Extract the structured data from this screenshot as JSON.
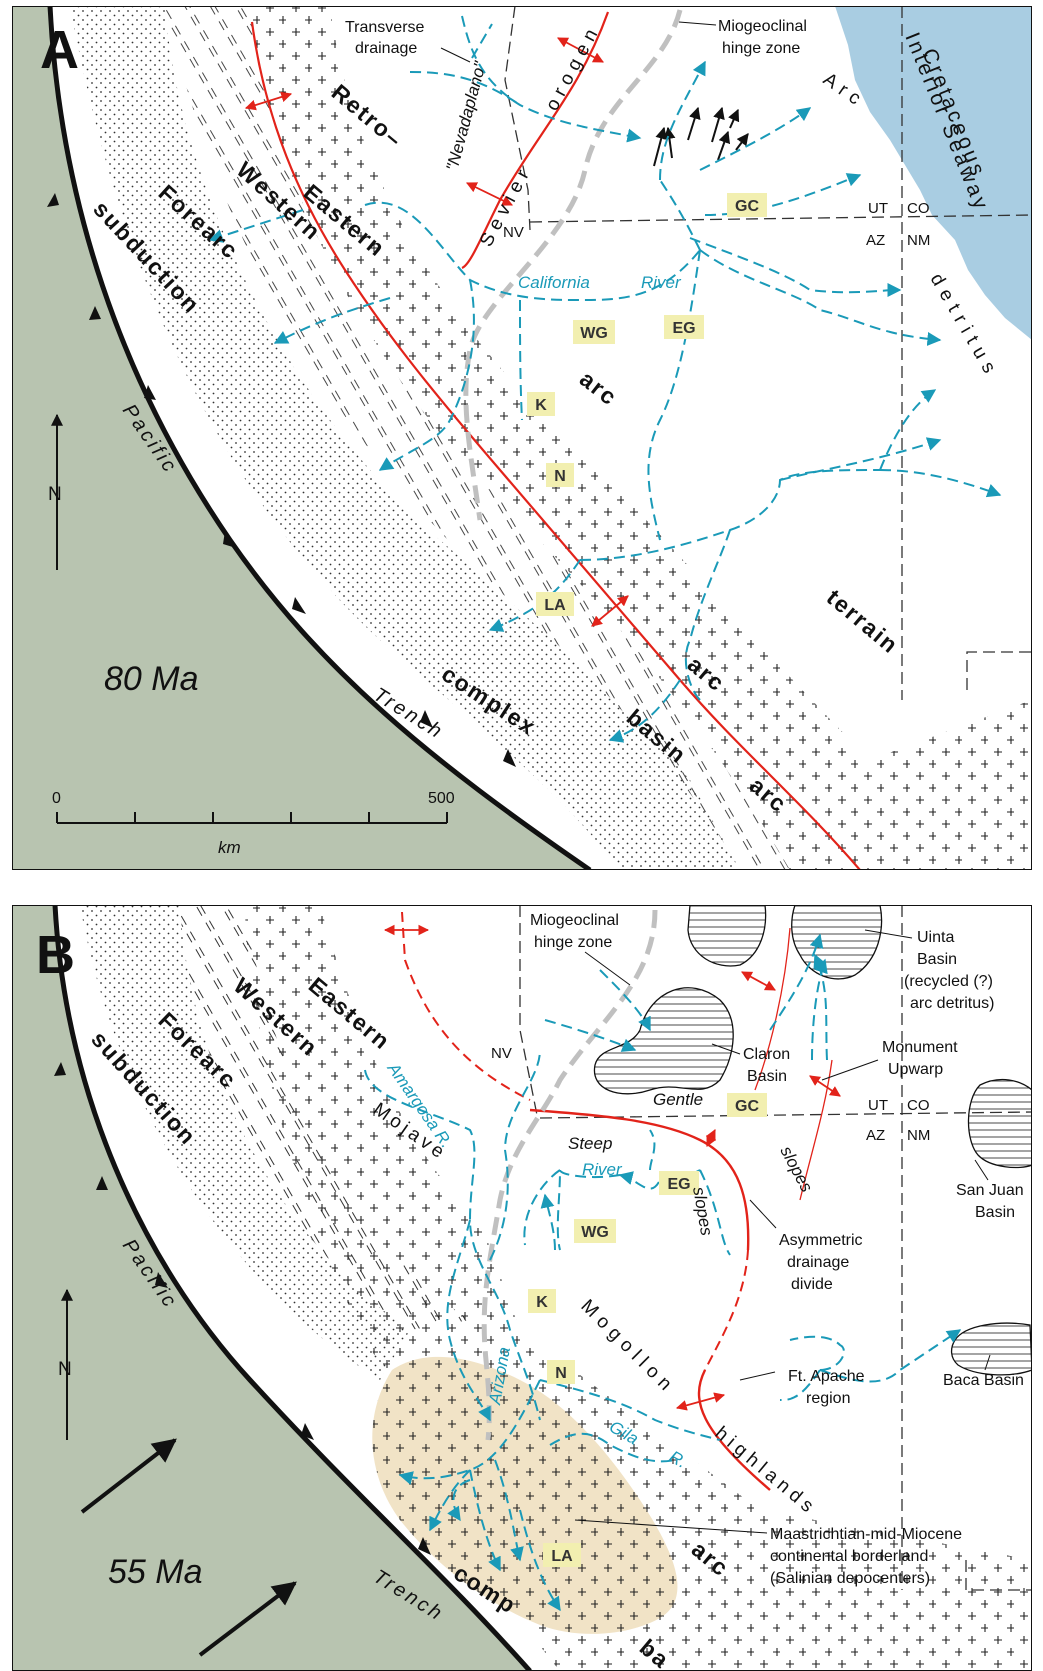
{
  "colors": {
    "ocean": "#b8c4b0",
    "seaway": "#a9cde2",
    "drainage": "#1a9ab8",
    "fault": "#e2231a",
    "hinge": "#c0c0c0",
    "locality_box": "#f2efb0",
    "borderland": "#f1e3c6"
  },
  "panel_a": {
    "letter": "A",
    "age": "80 Ma",
    "scale_min": "0",
    "scale_max": "500",
    "scale_unit": "km",
    "north": "N",
    "transverse_drainage": [
      "Transverse",
      "drainage"
    ],
    "hinge_zone": [
      "Miogeoclinal",
      "hinge zone"
    ],
    "seaway": [
      "Cretaceous",
      "Interior Seaway"
    ],
    "nevadaplano": "\"Nevadaplano\"",
    "sevier": "Sevier",
    "orogen": "orogen",
    "arc_word": "Arc",
    "detritus": "detritus",
    "retro": "Retro–",
    "eastern": "Eastern",
    "western": "Western",
    "forearc": "Forearc",
    "subduction": "subduction",
    "complex": "complex",
    "pacific": "Pacific",
    "trench": "Trench",
    "arc1": "arc",
    "arc2": "arc",
    "arc3": "arc",
    "basin": "basin",
    "terrain": "terrain",
    "california_river": [
      "California",
      "River"
    ],
    "states": [
      "NV",
      "UT",
      "CO",
      "AZ",
      "NM"
    ],
    "localities": [
      "GC",
      "WG",
      "EG",
      "K",
      "N",
      "LA"
    ]
  },
  "panel_b": {
    "letter": "B",
    "age": "55 Ma",
    "north": "N",
    "hinge_zone": [
      "Miogeoclinal",
      "hinge zone"
    ],
    "uinta": [
      "Uinta",
      "Basin",
      "(recycled (?)",
      "arc detritus)"
    ],
    "claron": [
      "Claron",
      "Basin"
    ],
    "monument": [
      "Monument",
      "Upwarp"
    ],
    "gentle": "Gentle",
    "steep": "Steep",
    "slopes1": "slopes",
    "slopes2": "slopes",
    "san_juan": [
      "San Juan",
      "Basin"
    ],
    "asymmetric": [
      "Asymmetric",
      "drainage",
      "divide"
    ],
    "amargosa": "Amargosa R.",
    "mojave": "Mojave",
    "river": "River",
    "arizona": "Arizona",
    "gila": "Gila",
    "gila_r": "R.",
    "mogollon": "Mogollon",
    "highlands": "highlands",
    "ft_apache": [
      "Ft. Apache",
      "region"
    ],
    "baca": "Baca Basin",
    "borderland": [
      "Maastrichtian-mid-Miocene",
      "continental borderland",
      "(Salinian depocenters)"
    ],
    "eastern": "Eastern",
    "western": "Western",
    "forearc": "Forearc",
    "subduction": "subduction",
    "pacific": "Pacific",
    "trench": "Trench",
    "comp": "comp",
    "arc": "arc",
    "ba": "ba",
    "states": [
      "NV",
      "UT",
      "CO",
      "AZ",
      "NM"
    ],
    "localities": [
      "GC",
      "EG",
      "WG",
      "K",
      "N",
      "LA"
    ]
  }
}
